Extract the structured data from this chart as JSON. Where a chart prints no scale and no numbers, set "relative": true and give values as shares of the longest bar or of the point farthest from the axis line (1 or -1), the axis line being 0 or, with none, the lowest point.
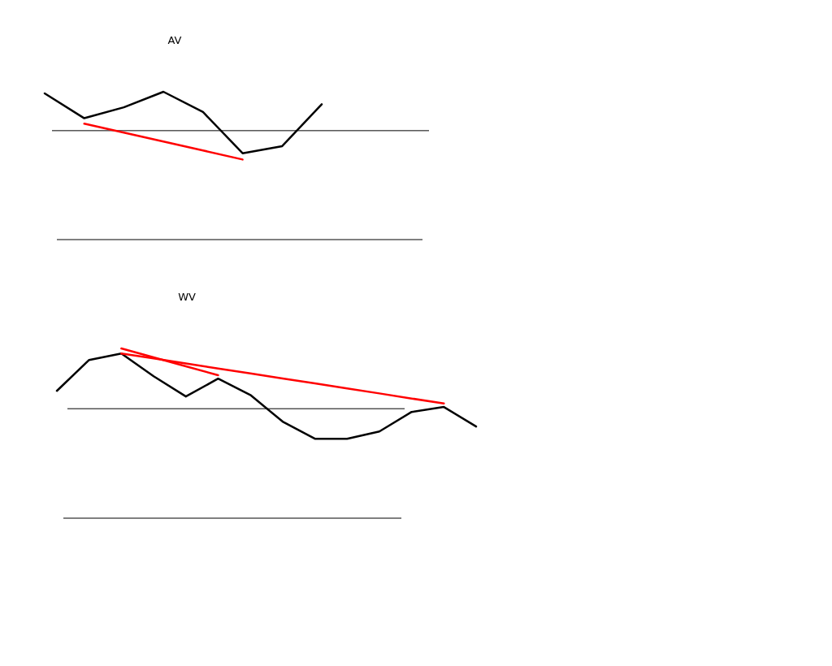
{
  "chart_data": [
    {
      "type": "line",
      "title": "AV",
      "relative": true,
      "categories": [
        null,
        null,
        null,
        null,
        null,
        null,
        null,
        null
      ],
      "ref_lines": [
        {
          "axis": "y",
          "value": 0.737,
          "color": "#000000"
        }
      ],
      "series": [
        {
          "color": "#000000",
          "values": [
            0.989,
            0.821,
            0.895,
            1,
            0.863,
            0.584,
            0.632,
            0.916
          ]
        },
        {
          "color": "#ff0000",
          "values": [
            null,
            0.784,
            0.724,
            0.663,
            0.603,
            0.542,
            null,
            null
          ]
        }
      ]
    },
    {
      "type": "line",
      "title": "WV",
      "relative": true,
      "categories": [
        null,
        null,
        null,
        null,
        null,
        null,
        null,
        null,
        null,
        null,
        null,
        null,
        null,
        null
      ],
      "ref_lines": [
        {
          "axis": "y",
          "value": 0.645,
          "color": "#000000"
        }
      ],
      "series": [
        {
          "color": "#000000",
          "values": [
            0.75,
            0.932,
            0.97,
            0.836,
            0.717,
            0.822,
            0.726,
            0.569,
            0.468,
            0.468,
            0.511,
            0.626,
            0.655,
            0.54
          ]
        },
        {
          "color": "#ff0000",
          "values": [
            null,
            null,
            1,
            0.947,
            0.895,
            0.842,
            null,
            null,
            null,
            null,
            null,
            null,
            null,
            null
          ]
        },
        {
          "color": "#ff0000",
          "values": [
            null,
            null,
            0.97,
            0.941,
            0.911,
            0.882,
            0.853,
            0.823,
            0.794,
            0.764,
            0.735,
            0.705,
            0.676,
            null
          ]
        }
      ]
    }
  ]
}
